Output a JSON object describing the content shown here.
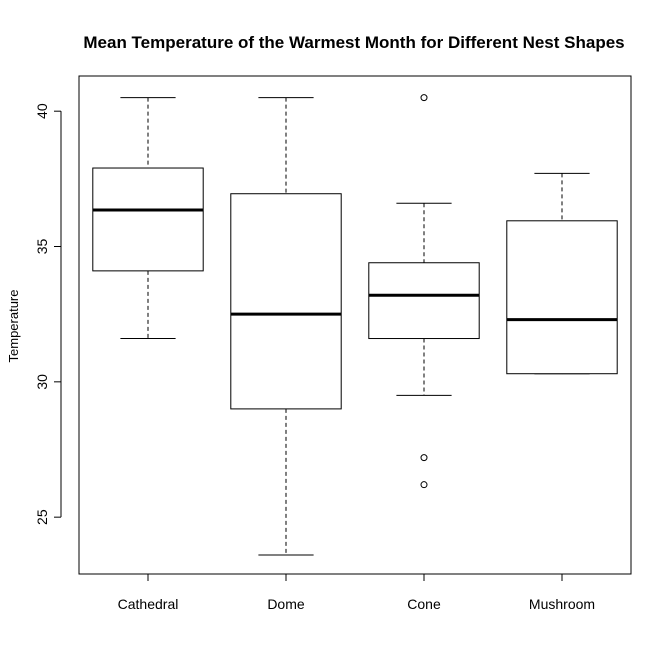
{
  "chart_data": {
    "type": "boxplot",
    "title": "Mean Temperature of the Warmest Month for Different Nest Shapes",
    "xlabel": "",
    "ylabel": "Temperature",
    "ylim": [
      22.9,
      41.3
    ],
    "yticks": [
      25,
      30,
      35,
      40
    ],
    "grid": false,
    "legend": "none",
    "categories": [
      "Cathedral",
      "Dome",
      "Cone",
      "Mushroom"
    ],
    "boxes": [
      {
        "category": "Cathedral",
        "whisker_low": 31.6,
        "q1": 34.1,
        "median": 36.35,
        "q3": 37.9,
        "whisker_high": 40.5,
        "outliers": []
      },
      {
        "category": "Dome",
        "whisker_low": 23.6,
        "q1": 29.0,
        "median": 32.5,
        "q3": 36.95,
        "whisker_high": 40.5,
        "outliers": []
      },
      {
        "category": "Cone",
        "whisker_low": 29.5,
        "q1": 31.6,
        "median": 33.2,
        "q3": 34.4,
        "whisker_high": 36.6,
        "outliers": [
          40.5,
          27.2,
          26.2
        ]
      },
      {
        "category": "Mushroom",
        "whisker_low": 30.3,
        "q1": 30.3,
        "median": 32.3,
        "q3": 35.95,
        "whisker_high": 37.7,
        "outliers": []
      }
    ]
  }
}
